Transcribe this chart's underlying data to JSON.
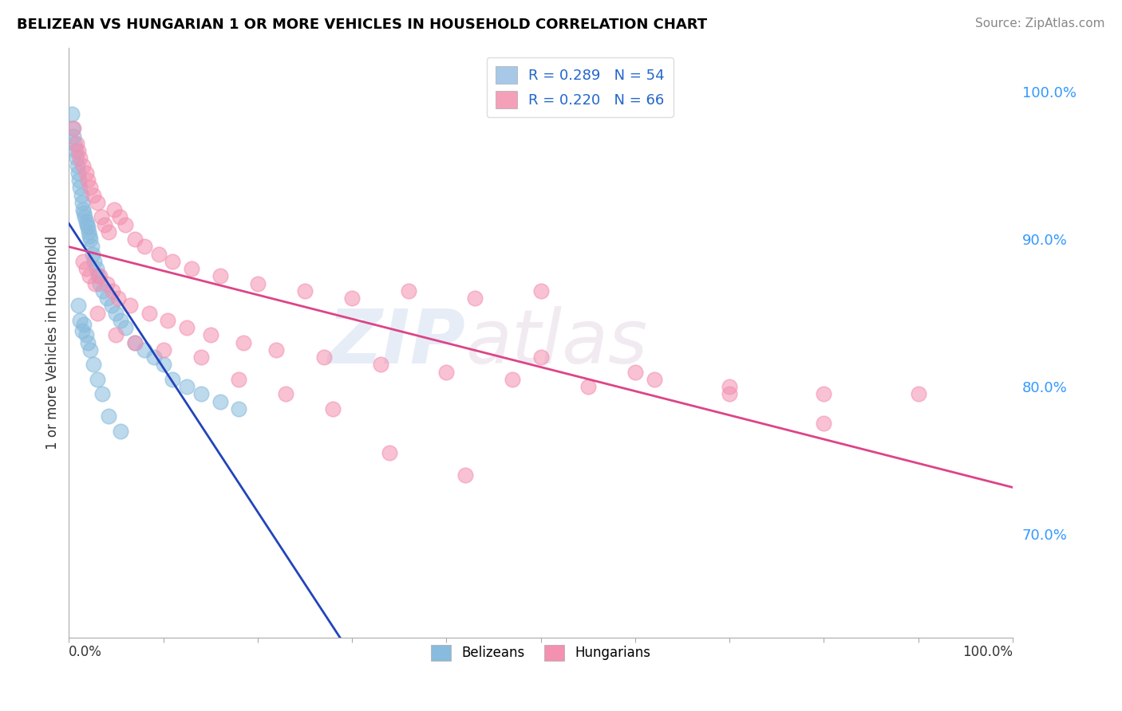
{
  "title": "BELIZEAN VS HUNGARIAN 1 OR MORE VEHICLES IN HOUSEHOLD CORRELATION CHART",
  "source_text": "Source: ZipAtlas.com",
  "ylabel": "1 or more Vehicles in Household",
  "xlim": [
    0,
    100
  ],
  "ylim": [
    63,
    103
  ],
  "right_yticks": [
    70,
    80,
    90,
    100
  ],
  "right_ytick_labels": [
    "70.0%",
    "80.0%",
    "90.0%",
    "100.0%"
  ],
  "legend_r_entries": [
    {
      "label": "R = 0.289   N = 54",
      "color": "#a8c8e8"
    },
    {
      "label": "R = 0.220   N = 66",
      "color": "#f4a0b8"
    }
  ],
  "belizean_color": "#88bbdd",
  "hungarian_color": "#f490b0",
  "belizean_line_color": "#2244bb",
  "hungarian_line_color": "#dd4488",
  "watermark_zip": "ZIP",
  "watermark_atlas": "atlas",
  "belizean_x": [
    0.3,
    0.4,
    0.5,
    0.6,
    0.7,
    0.8,
    0.9,
    1.0,
    1.1,
    1.2,
    1.3,
    1.4,
    1.5,
    1.6,
    1.7,
    1.8,
    1.9,
    2.0,
    2.1,
    2.2,
    2.3,
    2.4,
    2.5,
    2.7,
    2.9,
    3.1,
    3.3,
    3.6,
    4.0,
    4.5,
    5.0,
    5.5,
    6.0,
    7.0,
    8.0,
    9.0,
    10.0,
    11.0,
    12.5,
    14.0,
    16.0,
    18.0,
    1.0,
    1.2,
    1.4,
    1.6,
    1.8,
    2.0,
    2.3,
    2.6,
    3.0,
    3.5,
    4.2,
    5.5
  ],
  "belizean_y": [
    98.5,
    97.5,
    97.0,
    96.5,
    96.0,
    95.5,
    95.0,
    94.5,
    94.0,
    93.5,
    93.0,
    92.5,
    92.0,
    91.8,
    91.5,
    91.2,
    91.0,
    90.8,
    90.5,
    90.2,
    90.0,
    89.5,
    89.0,
    88.5,
    88.0,
    87.5,
    87.0,
    86.5,
    86.0,
    85.5,
    85.0,
    84.5,
    84.0,
    83.0,
    82.5,
    82.0,
    81.5,
    80.5,
    80.0,
    79.5,
    79.0,
    78.5,
    85.5,
    84.5,
    83.8,
    84.2,
    83.5,
    83.0,
    82.5,
    81.5,
    80.5,
    79.5,
    78.0,
    77.0
  ],
  "hungarian_x": [
    0.5,
    0.8,
    1.0,
    1.2,
    1.5,
    1.8,
    2.0,
    2.3,
    2.6,
    3.0,
    3.4,
    3.8,
    4.2,
    4.8,
    5.4,
    6.0,
    7.0,
    8.0,
    9.5,
    11.0,
    13.0,
    16.0,
    20.0,
    25.0,
    30.0,
    36.0,
    43.0,
    50.0,
    1.5,
    1.8,
    2.2,
    2.8,
    3.3,
    4.0,
    4.6,
    5.2,
    6.5,
    8.5,
    10.5,
    12.5,
    15.0,
    18.5,
    22.0,
    27.0,
    33.0,
    40.0,
    47.0,
    55.0,
    62.0,
    70.0,
    80.0,
    50.0,
    60.0,
    70.0,
    80.0,
    90.0,
    3.0,
    5.0,
    7.0,
    10.0,
    14.0,
    18.0,
    23.0,
    28.0,
    34.0,
    42.0
  ],
  "hungarian_y": [
    97.5,
    96.5,
    96.0,
    95.5,
    95.0,
    94.5,
    94.0,
    93.5,
    93.0,
    92.5,
    91.5,
    91.0,
    90.5,
    92.0,
    91.5,
    91.0,
    90.0,
    89.5,
    89.0,
    88.5,
    88.0,
    87.5,
    87.0,
    86.5,
    86.0,
    86.5,
    86.0,
    86.5,
    88.5,
    88.0,
    87.5,
    87.0,
    87.5,
    87.0,
    86.5,
    86.0,
    85.5,
    85.0,
    84.5,
    84.0,
    83.5,
    83.0,
    82.5,
    82.0,
    81.5,
    81.0,
    80.5,
    80.0,
    80.5,
    80.0,
    79.5,
    82.0,
    81.0,
    79.5,
    77.5,
    79.5,
    85.0,
    83.5,
    83.0,
    82.5,
    82.0,
    80.5,
    79.5,
    78.5,
    75.5,
    74.0
  ]
}
